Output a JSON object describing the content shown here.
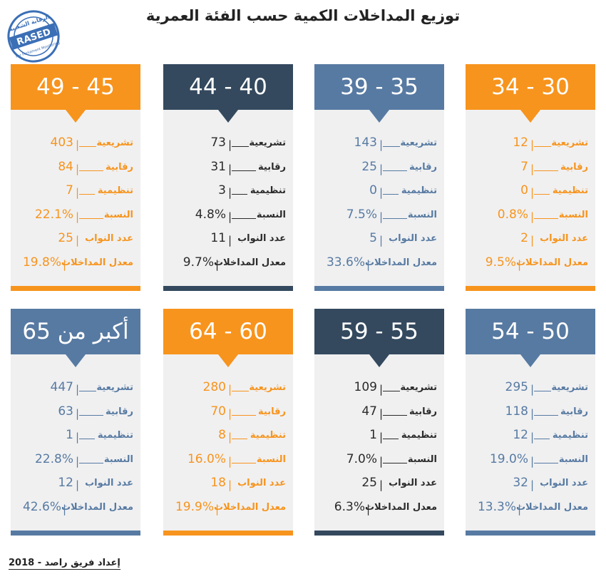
{
  "title": "توزيع المداخلات الكمية حسب الفئة العمرية",
  "footer": "إعداد فريق راصد - 2018",
  "stamp": {
    "text_top": "الرقابة الشعبية",
    "text_mid": "RASED",
    "text_bottom": "For Parliament Monitoring",
    "color": "#3b6fb6"
  },
  "colors": {
    "orange": "#f7941d",
    "navy": "#34495e",
    "blue": "#577aa2",
    "panel": "#f0f0f1",
    "dark_text": "#2b2b2b"
  },
  "row_labels": [
    "تشريعية",
    "رقابية",
    "تنظيمية",
    "النسبة",
    "عدد النواب",
    "معدل المداخلات"
  ],
  "chart_data": {
    "type": "table",
    "title": "توزيع المداخلات الكمية حسب الفئة العمرية",
    "columns": [
      "تشريعية",
      "رقابية",
      "تنظيمية",
      "النسبة",
      "عدد النواب",
      "معدل المداخلات"
    ],
    "groups": [
      {
        "label": "30 - 34",
        "theme": "orange",
        "values": [
          "12",
          "7",
          "0",
          "0.8%",
          "2",
          "9.5%"
        ]
      },
      {
        "label": "35 - 39",
        "theme": "blue",
        "values": [
          "143",
          "25",
          "0",
          "7.5%",
          "5",
          "33.6%"
        ]
      },
      {
        "label": "40 - 44",
        "theme": "navy",
        "values": [
          "73",
          "31",
          "3",
          "4.8%",
          "11",
          "9.7%"
        ]
      },
      {
        "label": "45 - 49",
        "theme": "orange",
        "values": [
          "403",
          "84",
          "7",
          "22.1%",
          "25",
          "19.8%"
        ]
      },
      {
        "label": "50 - 54",
        "theme": "blue",
        "values": [
          "295",
          "118",
          "12",
          "19.0%",
          "32",
          "13.3%"
        ]
      },
      {
        "label": "55 - 59",
        "theme": "navy",
        "values": [
          "109",
          "47",
          "1",
          "7.0%",
          "25",
          "6.3%"
        ]
      },
      {
        "label": "60 - 64",
        "theme": "orange",
        "values": [
          "280",
          "70",
          "8",
          "16.0%",
          "18",
          "19.9%"
        ]
      },
      {
        "label": "أكبر من 65",
        "theme": "blue",
        "values": [
          "447",
          "63",
          "1",
          "22.8%",
          "12",
          "42.6%"
        ]
      }
    ]
  }
}
